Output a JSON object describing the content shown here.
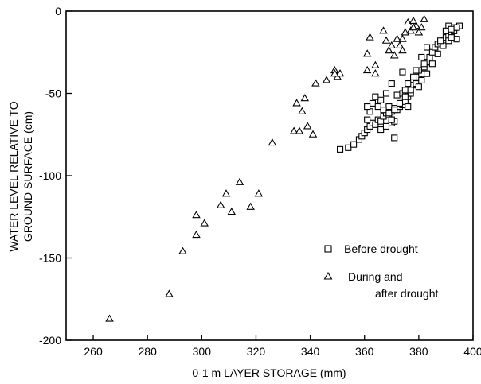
{
  "chart_data": {
    "type": "scatter",
    "xlabel": "0-1 m LAYER STORAGE (mm)",
    "ylabel_lines": [
      "WATER LEVEL RELATIVE TO",
      "GROUND SURFACE (cm)"
    ],
    "xlim": [
      250,
      400
    ],
    "ylim": [
      -200,
      0
    ],
    "x_ticks": [
      260,
      280,
      300,
      320,
      340,
      360,
      380,
      400
    ],
    "y_ticks": [
      0,
      -50,
      -100,
      -150,
      -200
    ],
    "legend_placement": "lower-right",
    "grid": false,
    "series": [
      {
        "name": "Before drought",
        "marker": "square",
        "points": [
          [
            351,
            -84
          ],
          [
            354,
            -83
          ],
          [
            356,
            -81
          ],
          [
            358,
            -78
          ],
          [
            359,
            -76
          ],
          [
            360,
            -74
          ],
          [
            361,
            -72
          ],
          [
            362,
            -70
          ],
          [
            363,
            -68
          ],
          [
            364,
            -69
          ],
          [
            365,
            -66
          ],
          [
            366,
            -67
          ],
          [
            367,
            -64
          ],
          [
            368,
            -62
          ],
          [
            369,
            -63
          ],
          [
            370,
            -61
          ],
          [
            371,
            -59
          ],
          [
            369,
            -58
          ],
          [
            370,
            -68
          ],
          [
            371,
            -67
          ],
          [
            372,
            -60
          ],
          [
            373,
            -58
          ],
          [
            374,
            -57
          ],
          [
            375,
            -55
          ],
          [
            376,
            -58
          ],
          [
            372,
            -51
          ],
          [
            374,
            -50
          ],
          [
            375,
            -48
          ],
          [
            376,
            -52
          ],
          [
            377,
            -50
          ],
          [
            378,
            -45
          ],
          [
            379,
            -42
          ],
          [
            380,
            -40
          ],
          [
            381,
            -38
          ],
          [
            382,
            -34
          ],
          [
            383,
            -31
          ],
          [
            384,
            -28
          ],
          [
            385,
            -25
          ],
          [
            386,
            -22
          ],
          [
            387,
            -20
          ],
          [
            388,
            -19
          ],
          [
            389,
            -18
          ],
          [
            390,
            -16
          ],
          [
            391,
            -15
          ],
          [
            392,
            -13
          ],
          [
            393,
            -12
          ],
          [
            394,
            -17
          ],
          [
            393,
            -10
          ],
          [
            391,
            -9
          ],
          [
            395,
            -9
          ],
          [
            381,
            -28
          ],
          [
            382,
            -32
          ],
          [
            380,
            -36
          ],
          [
            378,
            -40
          ],
          [
            376,
            -44
          ],
          [
            374,
            -37
          ],
          [
            370,
            -44
          ],
          [
            368,
            -50
          ],
          [
            366,
            -54
          ],
          [
            364,
            -52
          ],
          [
            363,
            -56
          ],
          [
            362,
            -61
          ],
          [
            361,
            -66
          ],
          [
            371,
            -77
          ],
          [
            361,
            -58
          ],
          [
            365,
            -58
          ],
          [
            367,
            -60
          ],
          [
            369,
            -62
          ],
          [
            371,
            -60
          ],
          [
            373,
            -56
          ],
          [
            375,
            -52
          ],
          [
            377,
            -48
          ],
          [
            379,
            -44
          ],
          [
            381,
            -42
          ],
          [
            383,
            -38
          ],
          [
            385,
            -32
          ],
          [
            387,
            -26
          ],
          [
            389,
            -21
          ],
          [
            391,
            -18
          ],
          [
            392,
            -16
          ],
          [
            366,
            -72
          ],
          [
            368,
            -70
          ],
          [
            370,
            -66
          ],
          [
            380,
            -46
          ],
          [
            379,
            -36
          ],
          [
            383,
            -22
          ],
          [
            388,
            -18
          ],
          [
            390,
            -12
          ],
          [
            392,
            -11
          ],
          [
            394,
            -10
          ]
        ]
      },
      {
        "name": "During and after drought",
        "marker": "triangle",
        "points": [
          [
            266,
            -187
          ],
          [
            288,
            -172
          ],
          [
            293,
            -146
          ],
          [
            298,
            -136
          ],
          [
            298,
            -124
          ],
          [
            301,
            -129
          ],
          [
            307,
            -118
          ],
          [
            309,
            -111
          ],
          [
            311,
            -122
          ],
          [
            314,
            -104
          ],
          [
            318,
            -119
          ],
          [
            321,
            -111
          ],
          [
            326,
            -80
          ],
          [
            334,
            -73
          ],
          [
            335,
            -56
          ],
          [
            336,
            -73
          ],
          [
            337,
            -61
          ],
          [
            338,
            -53
          ],
          [
            339,
            -70
          ],
          [
            341,
            -75
          ],
          [
            342,
            -44
          ],
          [
            346,
            -42
          ],
          [
            349,
            -36
          ],
          [
            350,
            -40
          ],
          [
            351,
            -38
          ],
          [
            349,
            -38
          ],
          [
            361,
            -26
          ],
          [
            362,
            -16
          ],
          [
            364,
            -33
          ],
          [
            367,
            -12
          ],
          [
            368,
            -18
          ],
          [
            369,
            -24
          ],
          [
            370,
            -21
          ],
          [
            371,
            -27
          ],
          [
            372,
            -17
          ],
          [
            373,
            -21
          ],
          [
            374,
            -17
          ],
          [
            375,
            -13
          ],
          [
            376,
            -7
          ],
          [
            377,
            -12
          ],
          [
            378,
            -6
          ],
          [
            379,
            -9
          ],
          [
            380,
            -13
          ],
          [
            381,
            -10
          ],
          [
            382,
            -5
          ],
          [
            374,
            -24
          ],
          [
            364,
            -38
          ],
          [
            361,
            -36
          ],
          [
            378,
            -10
          ]
        ]
      }
    ]
  },
  "legend": {
    "before_label": "Before drought",
    "during_label_line1": "During and",
    "during_label_line2": "after drought"
  }
}
